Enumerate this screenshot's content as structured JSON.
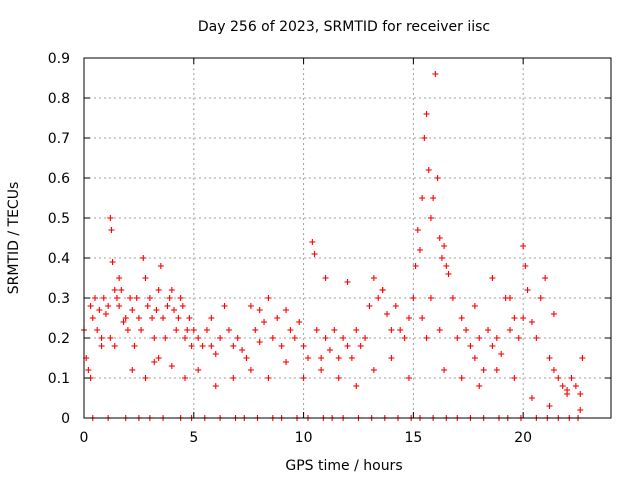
{
  "chart_data": {
    "type": "scatter",
    "title": "Day 256 of 2023, SRMTID for receiver iisc",
    "xlabel": "GPS time / hours",
    "ylabel": "SRMTID / TECUs",
    "xlim": [
      0,
      24
    ],
    "ylim": [
      0,
      0.9
    ],
    "xticks": [
      "0",
      "5",
      "10",
      "15",
      "20"
    ],
    "yticks": [
      "0",
      "0.1",
      "0.2",
      "0.3",
      "0.4",
      "0.5",
      "0.6",
      "0.7",
      "0.8",
      "0.9"
    ],
    "grid": true,
    "marker": "+",
    "color": "#ff0000",
    "series": [
      {
        "name": "SRMTID",
        "x": [
          0.0,
          0.1,
          0.2,
          0.3,
          0.4,
          0.5,
          0.6,
          0.7,
          0.8,
          0.9,
          1.0,
          1.1,
          1.2,
          1.25,
          1.3,
          1.4,
          1.5,
          1.6,
          1.7,
          1.8,
          1.9,
          2.0,
          2.1,
          2.2,
          2.3,
          2.4,
          2.5,
          2.6,
          2.7,
          2.8,
          2.9,
          3.0,
          3.1,
          3.2,
          3.3,
          3.4,
          3.5,
          3.6,
          3.7,
          3.8,
          3.9,
          4.0,
          4.1,
          4.2,
          4.3,
          4.4,
          4.5,
          4.6,
          4.7,
          4.8,
          4.9,
          5.0,
          5.2,
          5.4,
          5.6,
          5.8,
          6.0,
          6.2,
          6.4,
          6.6,
          6.8,
          7.0,
          7.2,
          7.4,
          7.6,
          7.8,
          8.0,
          8.2,
          8.4,
          8.6,
          8.8,
          9.0,
          9.2,
          9.4,
          9.6,
          9.8,
          10.0,
          10.2,
          10.4,
          10.5,
          10.6,
          10.8,
          11.0,
          11.2,
          11.4,
          11.6,
          11.8,
          12.0,
          12.2,
          12.4,
          12.6,
          12.8,
          13.0,
          13.2,
          13.4,
          13.6,
          13.8,
          14.0,
          14.2,
          14.4,
          14.6,
          14.8,
          15.0,
          15.1,
          15.2,
          15.3,
          15.4,
          15.5,
          15.6,
          15.7,
          15.8,
          15.9,
          16.0,
          16.1,
          16.2,
          16.3,
          16.4,
          16.5,
          16.6,
          16.8,
          17.0,
          17.2,
          17.4,
          17.6,
          17.8,
          18.0,
          18.2,
          18.4,
          18.6,
          18.8,
          19.0,
          19.2,
          19.4,
          19.6,
          19.8,
          20.0,
          20.1,
          20.2,
          20.4,
          20.6,
          20.8,
          21.0,
          21.2,
          21.4,
          21.6,
          21.8,
          22.0,
          22.2,
          22.4,
          22.6,
          22.7,
          0.3,
          0.8,
          1.2,
          1.6,
          2.2,
          2.8,
          3.4,
          4.0,
          4.6,
          5.2,
          6.0,
          6.8,
          7.6,
          8.4,
          9.2,
          10.0,
          10.8,
          11.6,
          12.4,
          13.2,
          14.0,
          14.8,
          15.6,
          16.4,
          17.2,
          18.0,
          18.8,
          19.6,
          20.4,
          21.2,
          22.0,
          22.6,
          1.4,
          3.2,
          5.8,
          8.0,
          11.0,
          13.6,
          15.4,
          15.8,
          16.2,
          17.8,
          19.4,
          20.0,
          21.4,
          12.0,
          18.6
        ],
        "y": [
          0.22,
          0.15,
          0.12,
          0.28,
          0.25,
          0.3,
          0.22,
          0.27,
          0.2,
          0.3,
          0.26,
          0.28,
          0.5,
          0.47,
          0.39,
          0.32,
          0.3,
          0.28,
          0.32,
          0.24,
          0.25,
          0.22,
          0.3,
          0.27,
          0.18,
          0.3,
          0.25,
          0.22,
          0.4,
          0.35,
          0.28,
          0.3,
          0.25,
          0.2,
          0.27,
          0.32,
          0.38,
          0.25,
          0.2,
          0.28,
          0.3,
          0.32,
          0.27,
          0.22,
          0.25,
          0.3,
          0.28,
          0.2,
          0.22,
          0.25,
          0.18,
          0.22,
          0.2,
          0.18,
          0.22,
          0.25,
          0.16,
          0.2,
          0.28,
          0.22,
          0.18,
          0.2,
          0.17,
          0.15,
          0.28,
          0.22,
          0.19,
          0.24,
          0.3,
          0.2,
          0.25,
          0.18,
          0.27,
          0.22,
          0.2,
          0.24,
          0.18,
          0.15,
          0.44,
          0.41,
          0.22,
          0.15,
          0.2,
          0.17,
          0.22,
          0.15,
          0.2,
          0.18,
          0.15,
          0.22,
          0.18,
          0.2,
          0.28,
          0.35,
          0.3,
          0.32,
          0.26,
          0.22,
          0.28,
          0.22,
          0.2,
          0.25,
          0.3,
          0.38,
          0.47,
          0.42,
          0.55,
          0.7,
          0.76,
          0.62,
          0.5,
          0.55,
          0.86,
          0.6,
          0.45,
          0.4,
          0.43,
          0.38,
          0.36,
          0.3,
          0.2,
          0.25,
          0.22,
          0.18,
          0.15,
          0.2,
          0.12,
          0.22,
          0.18,
          0.2,
          0.16,
          0.3,
          0.22,
          0.25,
          0.2,
          0.43,
          0.38,
          0.32,
          0.24,
          0.2,
          0.3,
          0.35,
          0.15,
          0.12,
          0.1,
          0.08,
          0.07,
          0.1,
          0.08,
          0.06,
          0.15,
          0.1,
          0.18,
          0.2,
          0.35,
          0.12,
          0.1,
          0.15,
          0.13,
          0.1,
          0.12,
          0.08,
          0.1,
          0.12,
          0.1,
          0.14,
          0.1,
          0.12,
          0.1,
          0.08,
          0.12,
          0.15,
          0.1,
          0.2,
          0.12,
          0.1,
          0.08,
          0.12,
          0.1,
          0.05,
          0.03,
          0.06,
          0.02,
          0.18,
          0.14,
          0.18,
          0.27,
          0.35,
          0.32,
          0.25,
          0.3,
          0.22,
          0.28,
          0.3,
          0.25,
          0.26,
          0.34,
          0.35
        ],
        "zero_x": [
          0.4,
          1.1,
          1.9,
          2.5,
          3.0,
          3.6,
          4.4,
          4.9,
          5.5,
          6.2,
          6.9,
          7.3,
          7.9,
          8.6,
          9.0,
          9.7,
          10.2,
          10.9,
          11.3,
          11.8,
          12.5,
          13.1,
          13.7,
          14.3,
          14.9,
          15.3,
          15.9,
          16.5,
          17.0,
          17.6,
          18.2,
          18.9,
          19.3,
          19.9,
          20.6,
          21.1,
          21.6,
          22.1,
          22.5
        ]
      }
    ]
  }
}
